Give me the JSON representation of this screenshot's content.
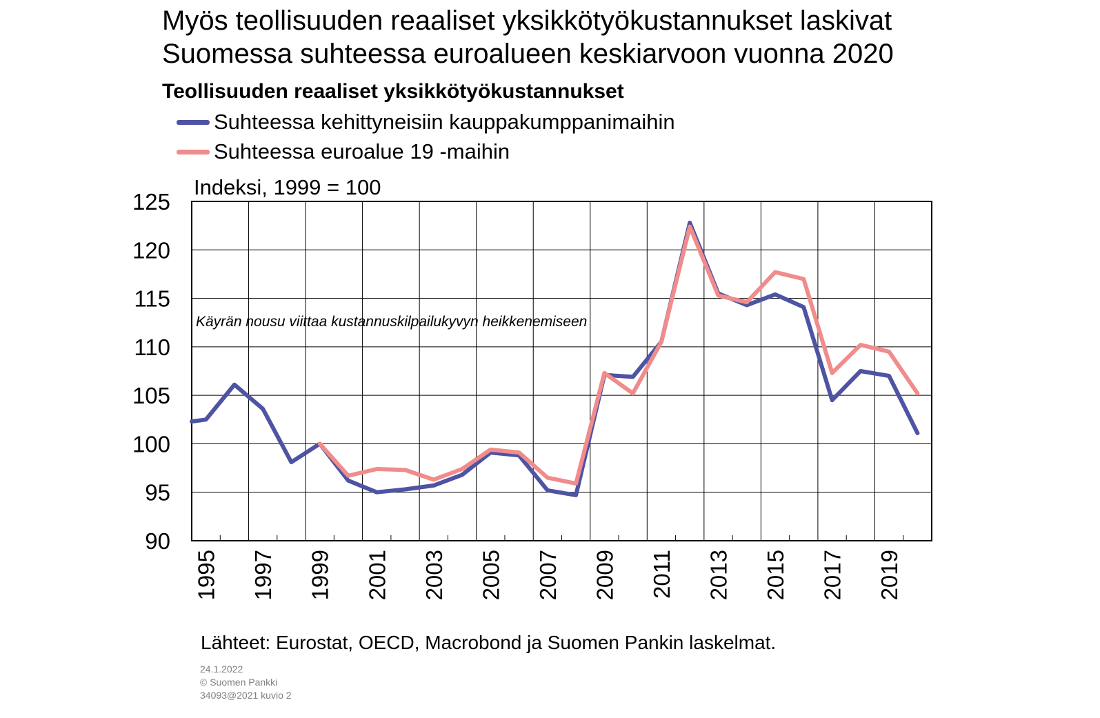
{
  "title_line1": "Myös teollisuuden reaaliset yksikkötyökustannukset laskivat",
  "title_line2": "Suomessa suhteessa euroalueen keskiarvoon vuonna 2020",
  "colors": {
    "series1": "#4e53a3",
    "series2": "#f08c8c",
    "axis": "#000000",
    "grid": "#000000"
  },
  "chart_data": {
    "type": "line",
    "title": "Teollisuuden reaaliset yksikkötyökustannukset",
    "ylabel": "Indeksi, 1999 = 100",
    "xlabel": "",
    "ylim": [
      90,
      125
    ],
    "y_ticks": [
      90,
      95,
      100,
      105,
      110,
      115,
      120,
      125
    ],
    "x": [
      1994.5,
      1995,
      1996,
      1997,
      1998,
      1999,
      2000,
      2001,
      2002,
      2003,
      2004,
      2005,
      2006,
      2007,
      2008,
      2009,
      2010,
      2011,
      2012,
      2013,
      2014,
      2015,
      2016,
      2017,
      2018,
      2019,
      2020
    ],
    "x_tick_labels": [
      "1995",
      "1997",
      "1999",
      "2001",
      "2003",
      "2005",
      "2007",
      "2009",
      "2011",
      "2013",
      "2015",
      "2017",
      "2019"
    ],
    "grid": true,
    "legend_position": "top",
    "annotation": "Käyrän nousu viittaa kustannuskilpailukyvyn heikkenemiseen",
    "series": [
      {
        "name": "Suhteessa kehittyneisiin kauppakumppanimaihin",
        "values": [
          102.3,
          102.5,
          106.1,
          103.6,
          98.1,
          100.0,
          96.2,
          95.0,
          95.3,
          95.7,
          96.8,
          99.1,
          98.8,
          95.2,
          94.7,
          107.1,
          106.9,
          110.5,
          122.8,
          115.5,
          114.3,
          115.4,
          114.1,
          104.5,
          107.5,
          107.0,
          101.1
        ]
      },
      {
        "name": "Suhteessa euroalue 19 -maihin",
        "values": [
          null,
          null,
          null,
          null,
          null,
          100.0,
          96.7,
          97.4,
          97.3,
          96.3,
          97.4,
          99.4,
          99.1,
          96.5,
          95.9,
          107.3,
          105.2,
          110.5,
          122.4,
          115.3,
          114.6,
          117.7,
          117.0,
          107.3,
          110.2,
          109.5,
          105.2
        ]
      }
    ],
    "source": "Lähteet: Eurostat, OECD, Macrobond ja Suomen Pankin laskelmat."
  },
  "footer": {
    "date": "24.1.2022",
    "copyright": "© Suomen  Pankki",
    "id": "34093@2021  kuvio  2"
  }
}
